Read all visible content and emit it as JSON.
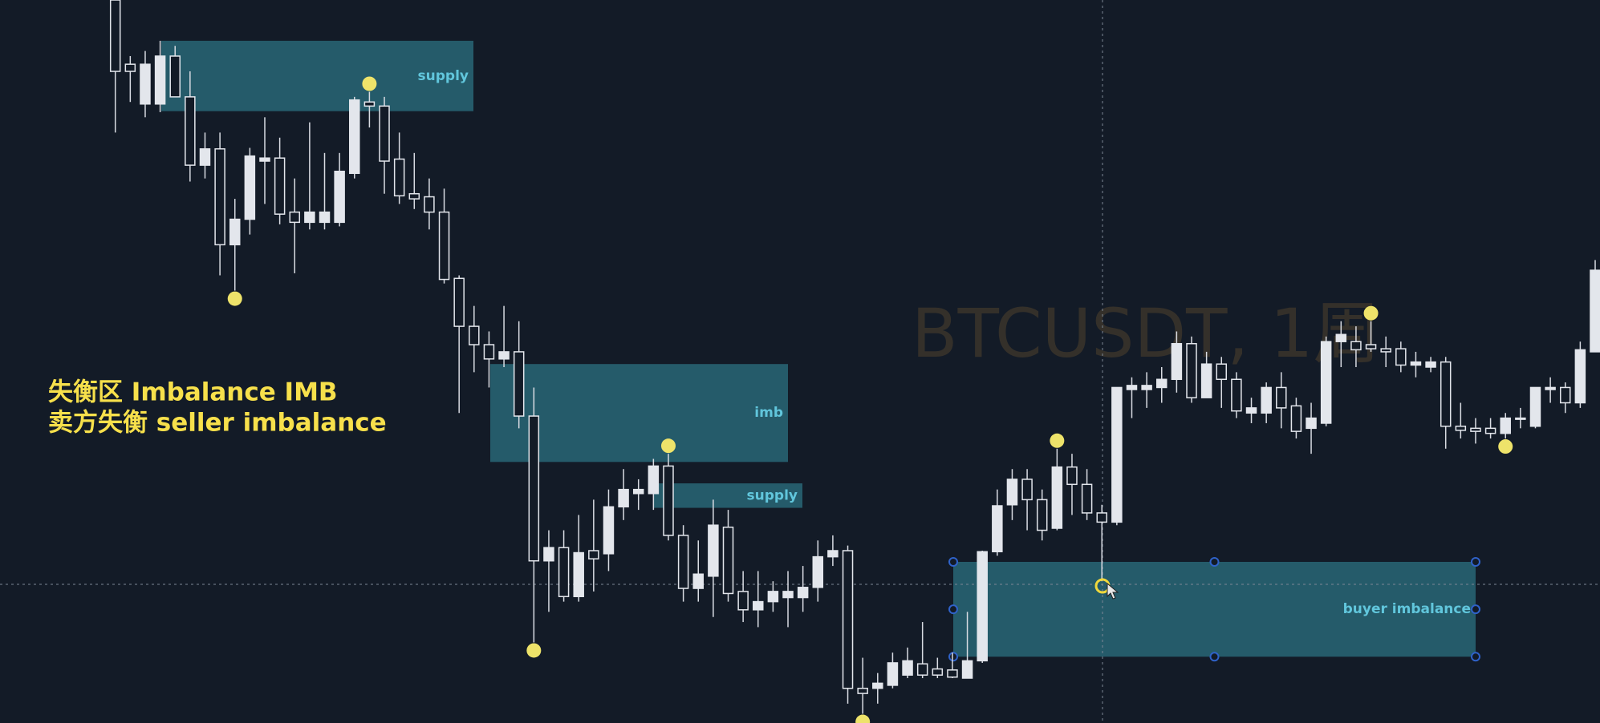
{
  "chart_data": {
    "type": "candlestick",
    "watermark": "BTCUSDT, 1周",
    "annotations": [
      "失衡区 Imbalance IMB",
      "卖方失衡 seller imbalance"
    ],
    "ylim": [
      0,
      709
    ],
    "ohlc": [
      [
        709,
        709,
        579,
        639
      ],
      [
        646,
        654,
        609,
        639
      ],
      [
        607,
        659,
        594,
        646
      ],
      [
        607,
        669,
        599,
        654
      ],
      [
        654,
        664,
        614,
        614
      ],
      [
        614,
        639,
        531,
        547
      ],
      [
        547,
        579,
        534,
        563
      ],
      [
        563,
        579,
        439,
        469
      ],
      [
        469,
        514,
        424,
        494
      ],
      [
        494,
        564,
        479,
        556
      ],
      [
        551,
        594,
        509,
        554
      ],
      [
        554,
        574,
        489,
        499
      ],
      [
        501,
        534,
        441,
        491
      ],
      [
        491,
        589,
        484,
        501
      ],
      [
        491,
        559,
        484,
        501
      ],
      [
        491,
        559,
        487,
        541
      ],
      [
        539,
        614,
        534,
        611
      ],
      [
        609,
        619,
        584,
        605
      ],
      [
        605,
        614,
        519,
        551
      ],
      [
        553,
        579,
        509,
        517
      ],
      [
        519,
        559,
        504,
        514
      ],
      [
        516,
        534,
        484,
        501
      ],
      [
        501,
        524,
        431,
        435
      ],
      [
        436,
        439,
        304,
        389
      ],
      [
        389,
        409,
        344,
        371
      ],
      [
        371,
        384,
        329,
        357
      ],
      [
        357,
        409,
        349,
        364
      ],
      [
        364,
        394,
        289,
        301
      ],
      [
        301,
        329,
        79,
        159
      ],
      [
        159,
        189,
        109,
        172
      ],
      [
        172,
        189,
        119,
        124
      ],
      [
        124,
        204,
        119,
        167
      ],
      [
        169,
        219,
        129,
        161
      ],
      [
        166,
        229,
        149,
        212
      ],
      [
        212,
        249,
        199,
        229
      ],
      [
        225,
        239,
        209,
        229
      ],
      [
        225,
        259,
        209,
        252
      ],
      [
        252,
        264,
        179,
        184
      ],
      [
        184,
        194,
        119,
        132
      ],
      [
        132,
        179,
        119,
        146
      ],
      [
        144,
        219,
        104,
        194
      ],
      [
        192,
        209,
        119,
        127
      ],
      [
        129,
        149,
        99,
        111
      ],
      [
        111,
        149,
        94,
        119
      ],
      [
        119,
        139,
        109,
        129
      ],
      [
        123,
        149,
        94,
        129
      ],
      [
        123,
        154,
        109,
        133
      ],
      [
        133,
        179,
        119,
        163
      ],
      [
        163,
        184,
        154,
        169
      ],
      [
        169,
        174,
        19,
        34
      ],
      [
        34,
        64,
        9,
        29
      ],
      [
        34,
        49,
        19,
        39
      ],
      [
        37,
        69,
        34,
        59
      ],
      [
        47,
        74,
        44,
        61
      ],
      [
        58,
        99,
        44,
        47
      ],
      [
        53,
        64,
        44,
        47
      ],
      [
        52,
        69,
        44,
        45
      ],
      [
        44,
        109,
        44,
        61
      ],
      [
        61,
        169,
        59,
        168
      ],
      [
        168,
        229,
        164,
        213
      ],
      [
        214,
        249,
        199,
        239
      ],
      [
        239,
        249,
        189,
        219
      ],
      [
        219,
        229,
        179,
        189
      ],
      [
        191,
        269,
        189,
        251
      ],
      [
        251,
        264,
        204,
        234
      ],
      [
        234,
        249,
        199,
        206
      ],
      [
        206,
        214,
        139,
        197
      ],
      [
        197,
        329,
        194,
        329
      ],
      [
        327,
        339,
        299,
        331
      ],
      [
        327,
        344,
        309,
        331
      ],
      [
        329,
        349,
        314,
        337
      ],
      [
        337,
        384,
        324,
        372
      ],
      [
        372,
        379,
        314,
        319
      ],
      [
        319,
        364,
        319,
        352
      ],
      [
        352,
        359,
        309,
        337
      ],
      [
        337,
        344,
        299,
        306
      ],
      [
        304,
        319,
        294,
        309
      ],
      [
        304,
        334,
        294,
        329
      ],
      [
        329,
        344,
        289,
        309
      ],
      [
        311,
        319,
        279,
        286
      ],
      [
        289,
        314,
        264,
        299
      ],
      [
        294,
        379,
        291,
        374
      ],
      [
        374,
        394,
        349,
        381
      ],
      [
        374,
        389,
        349,
        366
      ],
      [
        371,
        394,
        364,
        367
      ],
      [
        367,
        379,
        349,
        364
      ],
      [
        367,
        374,
        344,
        351
      ],
      [
        351,
        364,
        339,
        354
      ],
      [
        349,
        359,
        344,
        354
      ],
      [
        354,
        359,
        269,
        291
      ],
      [
        291,
        314,
        279,
        287
      ],
      [
        289,
        299,
        274,
        286
      ],
      [
        289,
        299,
        279,
        284
      ],
      [
        284,
        304,
        279,
        299
      ],
      [
        299,
        309,
        289,
        299
      ],
      [
        291,
        329,
        289,
        329
      ],
      [
        327,
        339,
        314,
        329
      ],
      [
        329,
        334,
        304,
        314
      ],
      [
        314,
        374,
        309,
        366
      ],
      [
        364,
        454,
        364,
        444
      ]
    ],
    "zones": [
      {
        "label": "supply",
        "low": 600,
        "high": 669
      },
      {
        "label": "imb",
        "low": 256,
        "high": 352
      },
      {
        "label": "supply",
        "low": 211,
        "high": 235
      },
      {
        "label": "buyer imbalance",
        "low": 65,
        "high": 158
      }
    ]
  }
}
